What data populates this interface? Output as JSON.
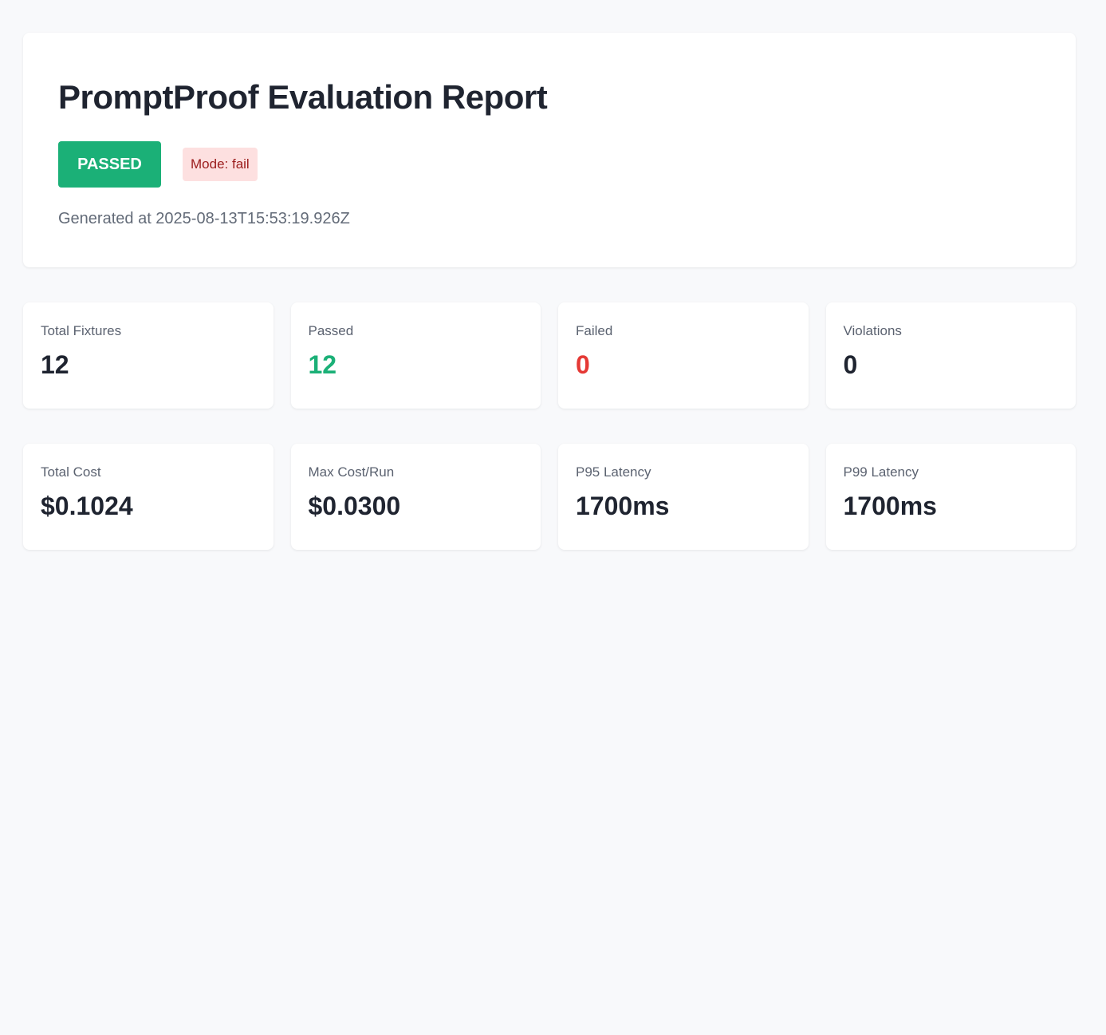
{
  "header": {
    "title": "PromptProof Evaluation Report",
    "status": "PASSED",
    "mode": "Mode: fail",
    "generated": "Generated at 2025-08-13T15:53:19.926Z"
  },
  "stats": [
    {
      "label": "Total Fixtures",
      "value": "12"
    },
    {
      "label": "Passed",
      "value": "12"
    },
    {
      "label": "Failed",
      "value": "0"
    },
    {
      "label": "Violations",
      "value": "0"
    }
  ],
  "metrics": [
    {
      "label": "Total Cost",
      "value": "$0.1024"
    },
    {
      "label": "Max Cost/Run",
      "value": "$0.0300"
    },
    {
      "label": "P95 Latency",
      "value": "1700ms"
    },
    {
      "label": "P99 Latency",
      "value": "1700ms"
    }
  ],
  "colors": {
    "pass": "#1bb077",
    "fail": "#e53935",
    "mode_bg": "#fde0e0"
  }
}
